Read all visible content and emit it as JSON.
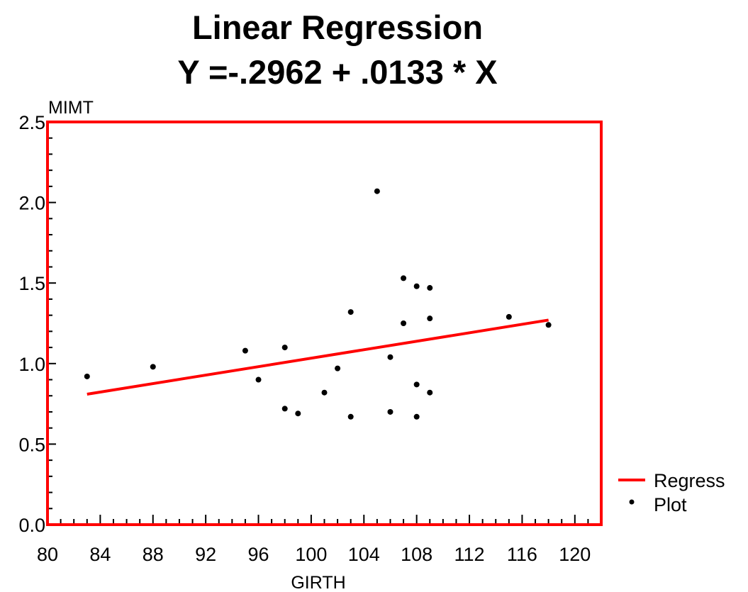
{
  "chart_data": {
    "type": "scatter",
    "title": "Linear Regression",
    "subtitle": "Y =-.2962 + .0133 * X",
    "xlabel": "GIRTH",
    "ylabel": "MIMT",
    "xlim": [
      80,
      122
    ],
    "ylim": [
      0.0,
      2.5
    ],
    "x_ticks": [
      "80",
      "84",
      "88",
      "92",
      "96",
      "100",
      "104",
      "108",
      "112",
      "116",
      "120"
    ],
    "y_ticks": [
      "0.0",
      "0.5",
      "1.0",
      "1.5",
      "2.0",
      "2.5"
    ],
    "grid": false,
    "legend_position": "right",
    "series": [
      {
        "name": "Regress",
        "kind": "line",
        "color": "#ff0000",
        "x": [
          83,
          118
        ],
        "y": [
          0.81,
          1.27
        ]
      },
      {
        "name": "Plot",
        "kind": "scatter",
        "color": "#000000",
        "x": [
          83,
          88,
          95,
          96,
          98,
          98,
          99,
          101,
          102,
          103,
          103,
          105,
          106,
          106,
          107,
          107,
          108,
          108,
          108,
          109,
          109,
          109,
          115,
          118
        ],
        "y": [
          0.92,
          0.98,
          1.08,
          0.9,
          1.1,
          0.72,
          0.69,
          0.82,
          0.97,
          1.32,
          0.67,
          2.07,
          1.04,
          0.7,
          1.53,
          1.25,
          1.48,
          0.87,
          0.67,
          1.47,
          1.28,
          0.82,
          1.29,
          1.24
        ]
      }
    ]
  }
}
